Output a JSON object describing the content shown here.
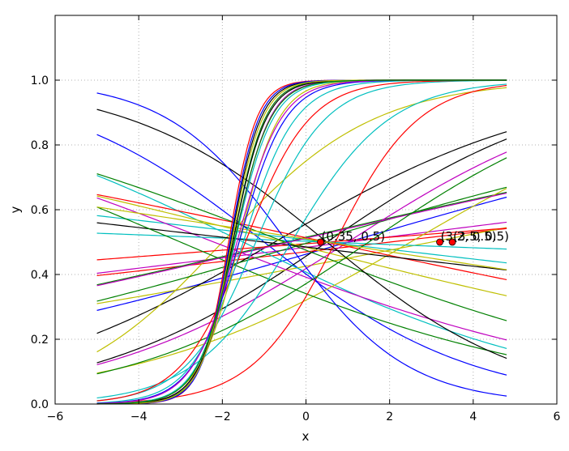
{
  "chart_data": {
    "type": "line",
    "title": "",
    "xlabel": "x",
    "ylabel": "y",
    "xlim": [
      -6,
      6
    ],
    "ylim": [
      0,
      1.2
    ],
    "xticks": [
      -6,
      -4,
      -2,
      0,
      2,
      4,
      6
    ],
    "xtick_labels": [
      "−6",
      "−4",
      "−2",
      "0",
      "2",
      "4",
      "6"
    ],
    "yticks": [
      0.0,
      0.2,
      0.4,
      0.6,
      0.8,
      1.0
    ],
    "ytick_labels": [
      "0.0",
      "0.2",
      "0.4",
      "0.6",
      "0.8",
      "1.0"
    ],
    "grid": true,
    "grid_style": "dotted",
    "line_function": "logistic y = 1 / (1 + exp(-a*(x - b)))",
    "x_range": [
      -5,
      4.8
    ],
    "colors": {
      "b": "#0000ff",
      "g": "#008000",
      "r": "#ff0000",
      "c": "#00bfbf",
      "m": "#bf00bf",
      "y": "#bfbf00",
      "k": "#000000",
      "marker": "#ff0000"
    },
    "series": [
      {
        "color": "b",
        "a": -0.4,
        "b": -1.0
      },
      {
        "color": "b",
        "a": 0.15,
        "b": 1.0
      },
      {
        "color": "k",
        "a": 0.35,
        "b": 0.5
      },
      {
        "color": "r",
        "a": 0.06,
        "b": 2.0
      },
      {
        "color": "c",
        "a": -0.06,
        "b": 0.5
      },
      {
        "color": "y",
        "a": 0.1,
        "b": 3.0
      },
      {
        "color": "m",
        "a": 0.065,
        "b": 1.0
      },
      {
        "color": "k",
        "a": 0.3,
        "b": -0.75
      },
      {
        "color": "y",
        "a": 0.55,
        "b": -2.0
      },
      {
        "color": "c",
        "a": -0.25,
        "b": -1.5
      },
      {
        "color": "m",
        "a": -0.2,
        "b": -2.2
      },
      {
        "color": "g",
        "a": 0.12,
        "b": -0.5
      },
      {
        "color": "r",
        "a": 0.04,
        "b": 0.5
      },
      {
        "color": "y",
        "a": 0.3,
        "b": 2.5
      },
      {
        "color": "m",
        "a": 0.33,
        "b": 1.0
      },
      {
        "color": "g",
        "a": 0.15,
        "b": 0.1
      },
      {
        "color": "r",
        "a": -0.11,
        "b": 0.5
      },
      {
        "color": "c",
        "a": -0.02,
        "b": 0.5
      },
      {
        "color": "y",
        "a": -0.13,
        "b": -0.5
      },
      {
        "color": "g",
        "a": -0.2,
        "b": -0.5
      },
      {
        "color": "k",
        "a": -0.06,
        "b": -1.0
      },
      {
        "color": "g",
        "a": -0.22,
        "b": -3.0
      },
      {
        "color": "c",
        "a": 0.85,
        "b": -0.35
      },
      {
        "color": "r",
        "a": 1.0,
        "b": 0.7
      },
      {
        "color": "k",
        "a": -0.42,
        "b": 0.5
      },
      {
        "color": "b",
        "a": -0.7,
        "b": -0.45
      },
      {
        "color": "m",
        "a": 0.12,
        "b": -0.4
      },
      {
        "color": "g",
        "a": 0.35,
        "b": 1.5
      },
      {
        "color": "c",
        "a": 1.2,
        "b": -1.2
      },
      {
        "color": "y",
        "a": -0.08,
        "b": 0.5
      },
      {
        "color": "r",
        "a": 1.3,
        "b": -1.45
      },
      {
        "color": "c",
        "a": 1.6,
        "b": -1.5
      },
      {
        "color": "y",
        "a": 2.1,
        "b": -1.6
      },
      {
        "color": "m",
        "a": 2.4,
        "b": -1.7
      },
      {
        "color": "b",
        "a": 1.8,
        "b": -1.6
      },
      {
        "color": "g",
        "a": 2.6,
        "b": -1.75
      },
      {
        "color": "k",
        "a": 2.8,
        "b": -1.8
      },
      {
        "color": "r",
        "a": 3.0,
        "b": -1.85
      },
      {
        "color": "c",
        "a": 2.2,
        "b": -1.7
      },
      {
        "color": "m",
        "a": 1.9,
        "b": -1.65
      },
      {
        "color": "k",
        "a": 2.5,
        "b": -1.75
      },
      {
        "color": "b",
        "a": 2.9,
        "b": -1.82
      },
      {
        "color": "y",
        "a": 2.7,
        "b": -1.78
      },
      {
        "color": "g",
        "a": 2.3,
        "b": -1.72
      }
    ],
    "points": [
      {
        "x": 0.35,
        "y": 0.5
      },
      {
        "x": 3.2,
        "y": 0.5
      },
      {
        "x": 3.5,
        "y": 0.5
      }
    ],
    "annotations": [
      {
        "text": "(0.35, 0.5)",
        "x": 0.35,
        "y": 0.5
      },
      {
        "text": "(3.2, 0.5)",
        "x": 3.2,
        "y": 0.5
      },
      {
        "text": "(3.5, 0.5)",
        "x": 3.5,
        "y": 0.5
      }
    ]
  }
}
